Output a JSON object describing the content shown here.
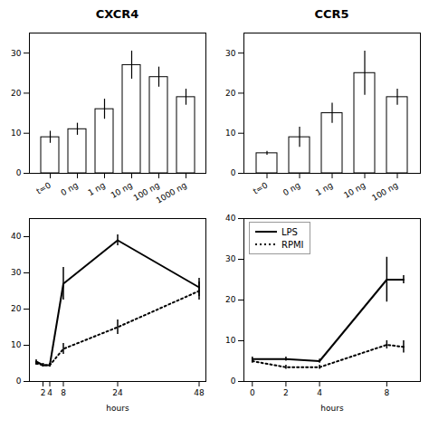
{
  "chart_data": [
    {
      "type": "bar",
      "title": "CXCR4",
      "categories": [
        "t=0",
        "0 ng",
        "1 ng",
        "10 ng",
        "100 ng",
        "1000 ng"
      ],
      "values": [
        9,
        11,
        16,
        27,
        24,
        19
      ],
      "errors": [
        1.5,
        1.5,
        2.5,
        3.5,
        2.5,
        2.0
      ],
      "color": "white",
      "ylim": [
        0,
        35
      ],
      "yticks": [
        0,
        10,
        20,
        30
      ]
    },
    {
      "type": "bar",
      "title": "CCR5",
      "categories": [
        "t=0",
        "0 ng",
        "1 ng",
        "10 ng",
        "100 ng"
      ],
      "values": [
        5,
        9,
        15,
        25,
        19
      ],
      "errors": [
        0.5,
        2.5,
        2.5,
        5.5,
        2.0
      ],
      "color": "white",
      "ylim": [
        0,
        35
      ],
      "yticks": [
        0,
        10,
        20,
        30
      ]
    },
    {
      "type": "line",
      "xlabel": "hours",
      "x": [
        0,
        2,
        4,
        8,
        24,
        48
      ],
      "series": [
        {
          "color": "black",
          "line_style": "solid",
          "values": [
            5.5,
            4.5,
            4.5,
            27,
            39,
            26
          ],
          "errors": [
            0.5,
            0.5,
            0.5,
            4.5,
            1.5,
            2.5
          ]
        },
        {
          "color": "black",
          "line_style": "dotted",
          "values": [
            5.0,
            4.5,
            4.5,
            9,
            15,
            25
          ],
          "errors": [
            0.5,
            0.5,
            0.5,
            1.5,
            2.0,
            2.5
          ]
        }
      ],
      "xlim": [
        -2,
        50
      ],
      "xticks": [
        2,
        4,
        8,
        24,
        48
      ],
      "ylim": [
        0,
        45
      ],
      "yticks": [
        0,
        10,
        20,
        30,
        40
      ]
    },
    {
      "type": "line",
      "xlabel": "hours",
      "x": [
        0,
        2,
        4,
        8,
        9
      ],
      "series": [
        {
          "name": "LPS",
          "color": "black",
          "line_style": "solid",
          "values": [
            5.5,
            5.5,
            5.0,
            25,
            25
          ],
          "errors": [
            0.5,
            0.5,
            0.5,
            5.5,
            1.0
          ]
        },
        {
          "name": "RPMI",
          "color": "black",
          "line_style": "dotted",
          "values": [
            5.0,
            3.5,
            3.5,
            9,
            8.5
          ],
          "errors": [
            0.5,
            0.5,
            0.5,
            1.0,
            1.5
          ]
        }
      ],
      "xlim": [
        -0.5,
        10
      ],
      "xticks": [
        0,
        2,
        4,
        8
      ],
      "ylim": [
        0,
        40
      ],
      "yticks": [
        0,
        10,
        20,
        30,
        40
      ],
      "legend": "upper left"
    }
  ]
}
